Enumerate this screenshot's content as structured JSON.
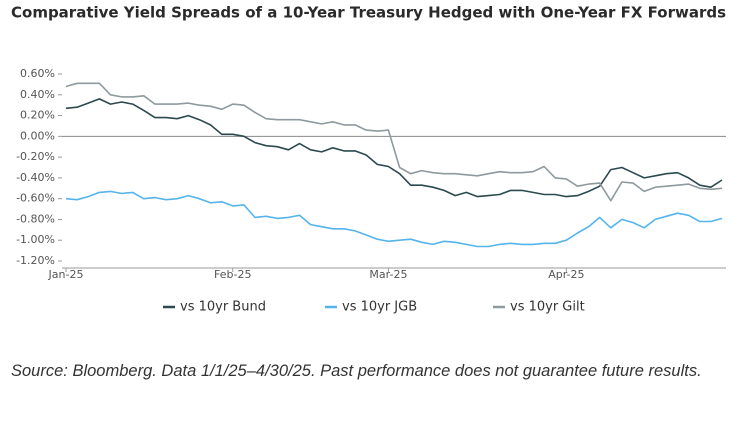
{
  "chart_data": {
    "type": "line",
    "title": "Comparative Yield Spreads of a 10-Year Treasury Hedged with One-Year FX Forwards",
    "categories": [
      "Jan-25",
      null,
      null,
      null,
      null,
      null,
      null,
      null,
      null,
      null,
      null,
      null,
      null,
      null,
      null,
      "Feb-25",
      null,
      null,
      null,
      null,
      null,
      null,
      null,
      null,
      null,
      null,
      null,
      null,
      null,
      "Mar-25",
      null,
      null,
      null,
      null,
      null,
      null,
      null,
      null,
      null,
      null,
      null,
      null,
      null,
      null,
      null,
      "Apr-25",
      null,
      null,
      null,
      null,
      null,
      null,
      null,
      null,
      null,
      null,
      null,
      null,
      null,
      null
    ],
    "series": [
      {
        "name": "vs 10yr Bund",
        "color": "#2b4a4f",
        "values": [
          0.27,
          0.28,
          0.32,
          0.36,
          0.31,
          0.33,
          0.31,
          0.25,
          0.18,
          0.18,
          0.17,
          0.2,
          0.16,
          0.11,
          0.02,
          0.02,
          0.0,
          -0.06,
          -0.09,
          -0.1,
          -0.13,
          -0.07,
          -0.13,
          -0.15,
          -0.11,
          -0.14,
          -0.14,
          -0.18,
          -0.27,
          -0.29,
          -0.36,
          -0.47,
          -0.47,
          -0.49,
          -0.52,
          -0.57,
          -0.54,
          -0.58,
          -0.57,
          -0.56,
          -0.52,
          -0.52,
          -0.54,
          -0.56,
          -0.56,
          -0.58,
          -0.57,
          -0.53,
          -0.48,
          -0.32,
          -0.3,
          -0.35,
          -0.4,
          -0.38,
          -0.36,
          -0.35,
          -0.4,
          -0.47,
          -0.49,
          -0.42
        ]
      },
      {
        "name": "vs 10yr JGB",
        "color": "#55b4ec",
        "values": [
          -0.6,
          -0.61,
          -0.58,
          -0.54,
          -0.53,
          -0.55,
          -0.54,
          -0.6,
          -0.59,
          -0.61,
          -0.6,
          -0.57,
          -0.6,
          -0.64,
          -0.63,
          -0.67,
          -0.66,
          -0.78,
          -0.77,
          -0.79,
          -0.78,
          -0.76,
          -0.85,
          -0.87,
          -0.89,
          -0.89,
          -0.91,
          -0.95,
          -0.99,
          -1.01,
          -1.0,
          -0.99,
          -1.02,
          -1.04,
          -1.01,
          -1.02,
          -1.04,
          -1.06,
          -1.06,
          -1.04,
          -1.03,
          -1.04,
          -1.04,
          -1.03,
          -1.03,
          -1.0,
          -0.93,
          -0.87,
          -0.78,
          -0.88,
          -0.8,
          -0.83,
          -0.88,
          -0.8,
          -0.77,
          -0.74,
          -0.76,
          -0.82,
          -0.82,
          -0.79
        ]
      },
      {
        "name": "vs 10yr Gilt",
        "color": "#8e9a9e",
        "values": [
          0.48,
          0.51,
          0.51,
          0.51,
          0.4,
          0.38,
          0.38,
          0.39,
          0.31,
          0.31,
          0.31,
          0.32,
          0.3,
          0.29,
          0.26,
          0.31,
          0.3,
          0.23,
          0.17,
          0.16,
          0.16,
          0.16,
          0.14,
          0.12,
          0.14,
          0.11,
          0.11,
          0.06,
          0.05,
          0.06,
          -0.3,
          -0.36,
          -0.33,
          -0.35,
          -0.36,
          -0.36,
          -0.37,
          -0.38,
          -0.36,
          -0.34,
          -0.35,
          -0.35,
          -0.34,
          -0.29,
          -0.4,
          -0.41,
          -0.48,
          -0.46,
          -0.45,
          -0.62,
          -0.44,
          -0.45,
          -0.53,
          -0.49,
          -0.48,
          -0.47,
          -0.46,
          -0.5,
          -0.51,
          -0.5
        ]
      }
    ],
    "ylim": [
      -1.2,
      0.6
    ],
    "yticks": [
      {
        "value": 0.6,
        "label": "0.60%"
      },
      {
        "value": 0.4,
        "label": "0.40%"
      },
      {
        "value": 0.2,
        "label": "0.20%"
      },
      {
        "value": 0,
        "label": "0.00%"
      },
      {
        "value": -0.2,
        "label": "-0.20%"
      },
      {
        "value": -0.4,
        "label": "-0.40%"
      },
      {
        "value": -0.6,
        "label": "-0.60%"
      },
      {
        "value": -0.8,
        "label": "-0.80%"
      },
      {
        "value": -1.0,
        "label": "-1.00%"
      },
      {
        "value": -1.2,
        "label": "-1.20%"
      }
    ],
    "legend": "bottom",
    "source": "Source: Bloomberg. Data 1/1/25–4/30/25. Past performance does not guarantee future results."
  }
}
